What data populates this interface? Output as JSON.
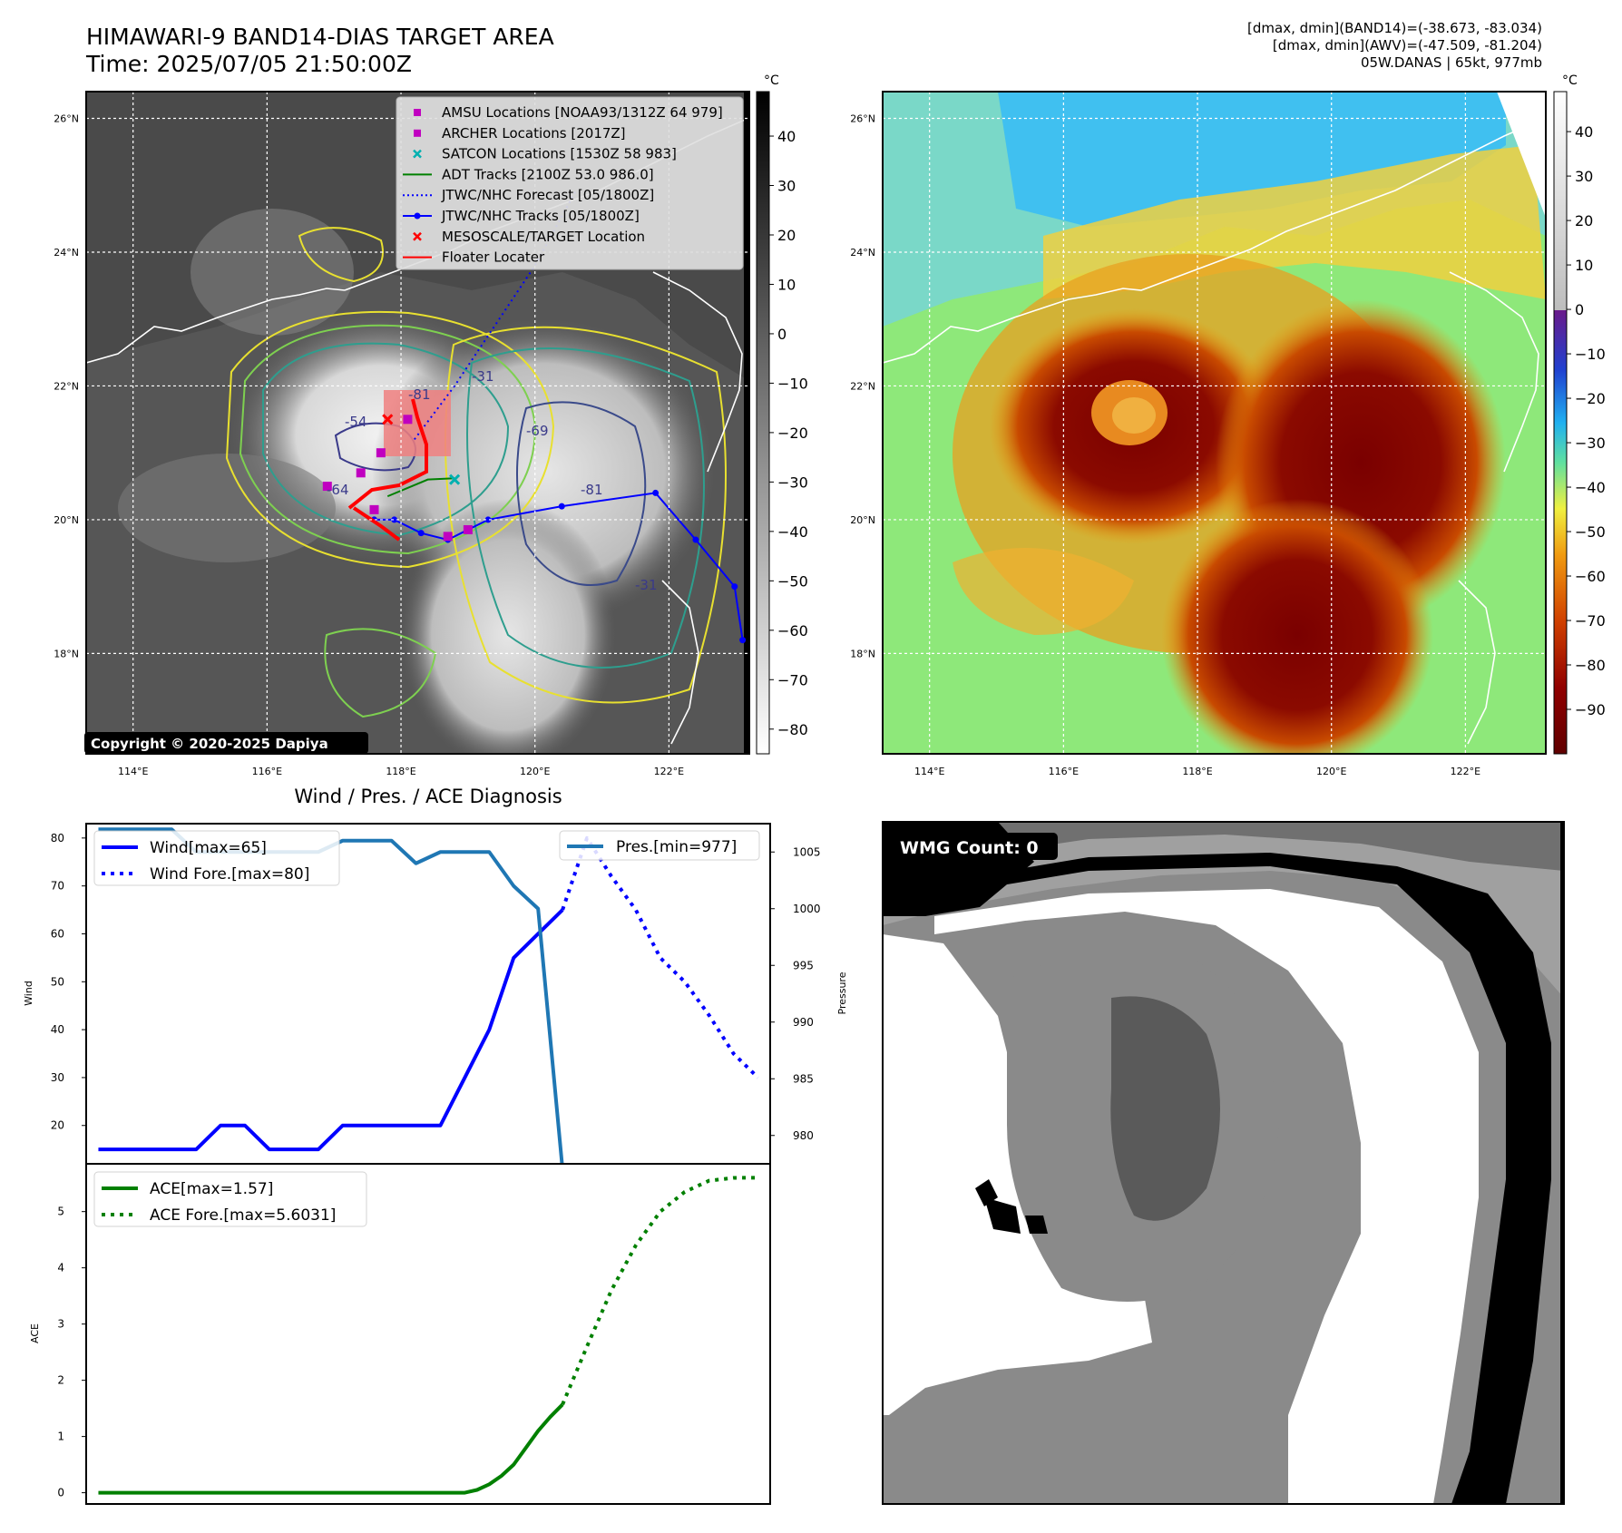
{
  "header": {
    "title_line1": "HIMAWARI-9 BAND14-DIAS TARGET AREA",
    "title_line2": "Time: 2025/07/05 21:50:00Z",
    "info_line1": "[dmax, dmin](BAND14)=(-38.673, -83.034)",
    "info_line2": "[dmax, dmin](AWV)=(-47.509, -81.204)",
    "info_line3": "05W.DANAS | 65kt, 977mb"
  },
  "map_axes": {
    "lat_ticks": [
      "26°N",
      "24°N",
      "22°N",
      "20°N",
      "18°N"
    ],
    "lat_values": [
      26,
      24,
      22,
      20,
      18
    ],
    "lon_ticks": [
      "114°E",
      "116°E",
      "118°E",
      "120°E",
      "122°E"
    ],
    "lon_values": [
      114,
      116,
      118,
      120,
      122
    ],
    "lon_range": [
      113.3,
      123.2
    ],
    "lat_range": [
      16.5,
      26.4
    ]
  },
  "ir_panel": {
    "colorbar_unit": "°C",
    "colorbar_ticks": [
      "40",
      "30",
      "20",
      "10",
      "0",
      "−10",
      "−20",
      "−30",
      "−40",
      "−50",
      "−60",
      "−70",
      "−80"
    ],
    "colorbar_values": [
      40,
      30,
      20,
      10,
      0,
      -10,
      -20,
      -30,
      -40,
      -50,
      -60,
      -70,
      -80
    ],
    "colorbar_range": [
      -85,
      49
    ],
    "copyright": "Copyright © 2020-2025 Dapiya",
    "legend": [
      {
        "label": "AMSU Locations [NOAA93/1312Z 64 979]",
        "marker": "square",
        "color": "#c000c0"
      },
      {
        "label": "ARCHER Locations [2017Z]",
        "marker": "square",
        "color": "#c000c0"
      },
      {
        "label": "SATCON Locations [1530Z 58 983]",
        "marker": "x",
        "color": "#00b0b0"
      },
      {
        "label": "ADT Tracks [2100Z 53.0 986.0]",
        "marker": "line",
        "color": "#008000"
      },
      {
        "label": "JTWC/NHC Forecast [05/1800Z]",
        "marker": "dotted",
        "color": "#0000ff"
      },
      {
        "label": "JTWC/NHC Tracks [05/1800Z]",
        "marker": "line-dot",
        "color": "#0000ff"
      },
      {
        "label": "MESOSCALE/TARGET Location",
        "marker": "x",
        "color": "#ff0000"
      },
      {
        "label": "Floater Locater",
        "marker": "line",
        "color": "#ff0000"
      }
    ],
    "contour_labels": [
      "-54",
      "-64",
      "-81",
      "-31",
      "-69",
      "-31",
      "-81"
    ],
    "jtwc_track": [
      [
        123.1,
        18.2
      ],
      [
        122.98,
        19.0
      ],
      [
        122.4,
        19.7
      ],
      [
        121.8,
        20.4
      ],
      [
        120.4,
        20.2
      ],
      [
        119.3,
        20.0
      ],
      [
        118.7,
        19.7
      ],
      [
        118.3,
        19.8
      ],
      [
        117.9,
        20.0
      ],
      [
        117.6,
        20.0
      ]
    ],
    "jtwc_forecast": [
      [
        118.2,
        21.2
      ],
      [
        118.8,
        22.0
      ],
      [
        119.4,
        22.9
      ],
      [
        120.0,
        23.8
      ],
      [
        120.6,
        24.9
      ]
    ],
    "adt_track": [
      [
        117.8,
        20.35
      ],
      [
        118.4,
        20.6
      ],
      [
        118.8,
        20.62
      ]
    ],
    "archer_points": [
      [
        117.7,
        21.0
      ],
      [
        117.4,
        20.7
      ],
      [
        116.9,
        20.5
      ],
      [
        117.6,
        20.15
      ],
      [
        118.7,
        19.75
      ],
      [
        119.0,
        19.85
      ]
    ],
    "amsu_point": [
      118.1,
      21.5
    ],
    "satcon_point": [
      118.8,
      20.6
    ],
    "target_point": [
      117.8,
      21.5
    ],
    "floater_box": {
      "lon": [
        117.7,
        118.7
      ],
      "lat": [
        20.9,
        21.9
      ]
    }
  },
  "awv_panel": {
    "colorbar_unit": "°C",
    "colorbar_ticks": [
      "40",
      "30",
      "20",
      "10",
      "0",
      "−10",
      "−20",
      "−30",
      "−40",
      "−50",
      "−60",
      "−70",
      "−80",
      "−90"
    ],
    "colorbar_values": [
      40,
      30,
      20,
      10,
      0,
      -10,
      -20,
      -30,
      -40,
      -50,
      -60,
      -70,
      -80,
      -90
    ],
    "colorbar_range": [
      -100,
      49
    ]
  },
  "diag_panel": {
    "title": "Wind / Pres. / ACE Diagnosis"
  },
  "wmg_panel": {
    "label": "WMG Count: 0"
  },
  "chart_data": [
    {
      "type": "line",
      "title": "Wind / Pres. / ACE Diagnosis",
      "ylabel": "Wind",
      "y2label": "Pressure",
      "ylim": [
        12,
        83
      ],
      "y2lim": [
        977.5,
        1007.5
      ],
      "xlim": [
        -0.5,
        27.5
      ],
      "yticks": [
        20,
        30,
        40,
        50,
        60,
        70,
        80
      ],
      "y2ticks": [
        980,
        985,
        990,
        995,
        1000,
        1005
      ],
      "series": [
        {
          "name": "Wind[max=65]",
          "style": "solid",
          "color": "#0000ff",
          "axis": "left",
          "x": [
            0,
            1,
            2,
            3,
            4,
            5,
            6,
            7,
            8,
            9,
            10,
            11,
            12,
            13,
            14,
            15,
            16,
            17,
            18,
            19
          ],
          "values": [
            15,
            15,
            15,
            15,
            15,
            20,
            20,
            15,
            15,
            15,
            20,
            20,
            20,
            20,
            20,
            30,
            40,
            55,
            60,
            65
          ]
        },
        {
          "name": "Wind Fore.[max=80]",
          "style": "dotted",
          "color": "#0000ff",
          "axis": "left",
          "x": [
            19,
            20,
            21,
            22,
            23,
            24,
            25,
            26,
            27
          ],
          "values": [
            65,
            80,
            72,
            65,
            55,
            50,
            43,
            35,
            30
          ]
        },
        {
          "name": "Pres.[min=977]",
          "style": "solid",
          "color": "#1f77b4",
          "axis": "right",
          "x": [
            0,
            1,
            2,
            3,
            4,
            5,
            6,
            7,
            8,
            9,
            10,
            11,
            12,
            13,
            14,
            15,
            16,
            17,
            18,
            19
          ],
          "values": [
            1007,
            1007,
            1007,
            1007,
            1005,
            1005,
            1005,
            1005,
            1005,
            1005,
            1006,
            1006,
            1006,
            1004,
            1005,
            1005,
            1005,
            1002,
            1000,
            977
          ]
        }
      ]
    },
    {
      "type": "line",
      "ylabel": "ACE",
      "ylim": [
        -0.2,
        5.85
      ],
      "xlim": [
        -0.5,
        27.5
      ],
      "yticks": [
        0,
        1,
        2,
        3,
        4,
        5
      ],
      "series": [
        {
          "name": "ACE[max=1.57]",
          "style": "solid",
          "color": "#008000",
          "x": [
            0,
            2,
            4,
            6,
            8,
            10,
            12,
            14,
            15,
            15.5,
            16,
            16.5,
            17,
            17.5,
            18,
            18.5,
            19
          ],
          "values": [
            0,
            0,
            0,
            0,
            0,
            0,
            0,
            0,
            0,
            0.05,
            0.15,
            0.3,
            0.5,
            0.8,
            1.1,
            1.35,
            1.57
          ]
        },
        {
          "name": "ACE Fore.[max=5.6031]",
          "style": "dotted",
          "color": "#008000",
          "x": [
            19,
            20,
            21,
            22,
            23,
            24,
            25,
            26,
            27
          ],
          "values": [
            1.57,
            2.6,
            3.6,
            4.4,
            5.0,
            5.35,
            5.55,
            5.6,
            5.6031
          ]
        }
      ]
    }
  ]
}
